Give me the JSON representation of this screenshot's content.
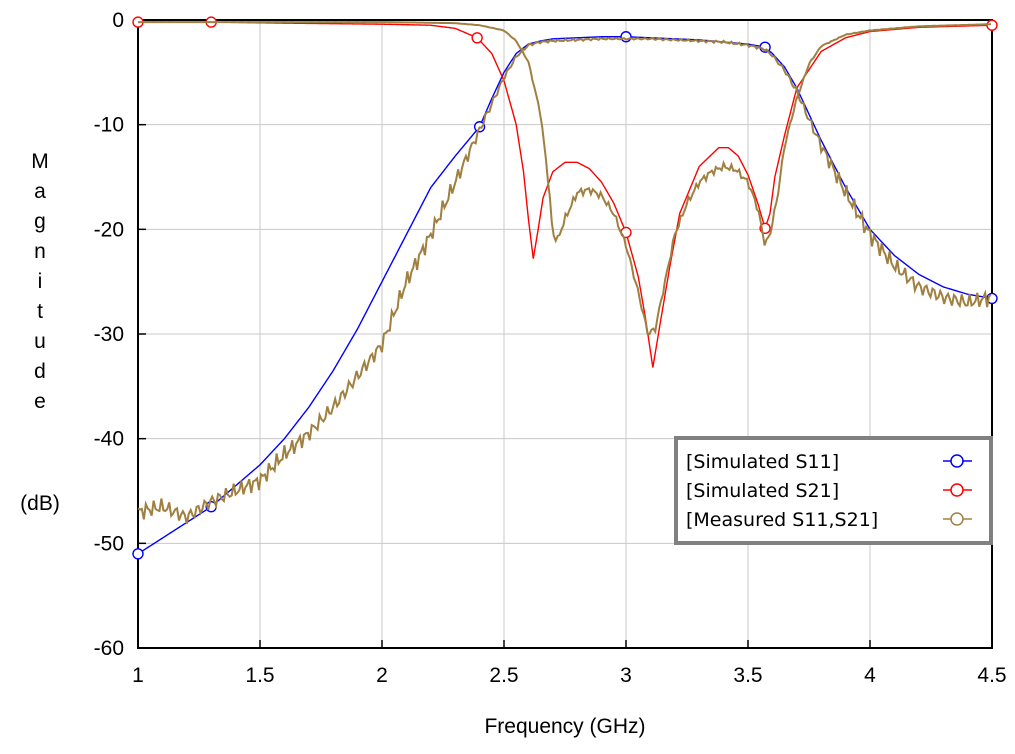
{
  "chart_data": {
    "type": "line",
    "title": "",
    "xlabel": "Frequency (GHz)",
    "ylabel": "Magnitude",
    "ylabel_unit": "(dB)",
    "xlim": [
      1,
      4.5
    ],
    "ylim": [
      -60,
      0
    ],
    "x_ticks": [
      "1",
      "1.5",
      "2",
      "2.5",
      "3",
      "3.5",
      "4",
      "4.5"
    ],
    "y_ticks": [
      "0",
      "-10",
      "-20",
      "-30",
      "-40",
      "-50",
      "-60"
    ],
    "grid": true,
    "legend_position": "lower-right",
    "series": [
      {
        "name": "[Simulated S11]",
        "color": "#0000ff",
        "marker": "circle",
        "markers_x": [
          1.0,
          1.3,
          2.4,
          3.0,
          3.57,
          4.5
        ],
        "x": [
          1.0,
          1.1,
          1.2,
          1.3,
          1.4,
          1.5,
          1.6,
          1.7,
          1.8,
          1.9,
          2.0,
          2.1,
          2.2,
          2.3,
          2.4,
          2.45,
          2.5,
          2.55,
          2.6,
          2.65,
          2.7,
          2.8,
          2.9,
          3.0,
          3.1,
          3.2,
          3.3,
          3.4,
          3.5,
          3.57,
          3.6,
          3.65,
          3.7,
          3.75,
          3.8,
          3.9,
          4.0,
          4.1,
          4.2,
          4.3,
          4.4,
          4.5
        ],
        "values": [
          -51.0,
          -49.5,
          -48.0,
          -46.5,
          -44.5,
          -42.5,
          -40.0,
          -37.0,
          -33.5,
          -29.5,
          -25.0,
          -20.5,
          -16.0,
          -13.0,
          -10.2,
          -7.5,
          -5.0,
          -3.2,
          -2.3,
          -2.0,
          -1.8,
          -1.7,
          -1.6,
          -1.6,
          -1.7,
          -1.8,
          -1.9,
          -2.1,
          -2.3,
          -2.6,
          -3.2,
          -4.5,
          -6.5,
          -9.0,
          -11.5,
          -16.0,
          -20.0,
          -22.5,
          -24.3,
          -25.5,
          -26.2,
          -26.6
        ]
      },
      {
        "name": "[Simulated S21]",
        "color": "#ff0000",
        "marker": "circle",
        "markers_x": [
          1.0,
          1.3,
          2.39,
          3.0,
          3.57,
          4.5
        ],
        "x": [
          1.0,
          1.3,
          1.6,
          2.0,
          2.2,
          2.3,
          2.39,
          2.45,
          2.5,
          2.55,
          2.58,
          2.6,
          2.62,
          2.64,
          2.66,
          2.7,
          2.75,
          2.8,
          2.85,
          2.9,
          2.95,
          3.0,
          3.05,
          3.08,
          3.11,
          3.14,
          3.18,
          3.22,
          3.3,
          3.38,
          3.42,
          3.46,
          3.5,
          3.54,
          3.57,
          3.59,
          3.61,
          3.65,
          3.7,
          3.8,
          3.9,
          4.0,
          4.2,
          4.5
        ],
        "values": [
          -0.2,
          -0.2,
          -0.3,
          -0.4,
          -0.5,
          -0.8,
          -1.7,
          -3.2,
          -5.8,
          -10.0,
          -14.5,
          -19.0,
          -22.8,
          -20.0,
          -17.0,
          -14.5,
          -13.6,
          -13.6,
          -14.2,
          -15.5,
          -17.5,
          -20.3,
          -24.5,
          -28.5,
          -33.2,
          -29.0,
          -23.5,
          -18.5,
          -14.0,
          -12.2,
          -12.2,
          -13.0,
          -14.8,
          -17.5,
          -19.9,
          -18.5,
          -15.0,
          -11.0,
          -6.5,
          -3.0,
          -1.7,
          -1.1,
          -0.7,
          -0.5
        ]
      },
      {
        "name": "[Measured S11,S21]",
        "color": "#a08040",
        "marker": "circle",
        "markers_x": [],
        "x": [
          1.0,
          1.1,
          1.2,
          1.3,
          1.4,
          1.5,
          1.6,
          1.7,
          1.8,
          1.9,
          2.0,
          2.1,
          2.2,
          2.3,
          2.4,
          2.45,
          2.5,
          2.55,
          2.6,
          2.65,
          2.7,
          2.8,
          2.9,
          3.0,
          3.1,
          3.2,
          3.3,
          3.4,
          3.5,
          3.57,
          3.6,
          3.65,
          3.7,
          3.75,
          3.8,
          3.9,
          4.0,
          4.1,
          4.2,
          4.3,
          4.4,
          4.5
        ],
        "values": [
          -47.0,
          -46.5,
          -47.5,
          -46.0,
          -45.0,
          -44.0,
          -41.5,
          -39.5,
          -37.0,
          -34.0,
          -31.0,
          -25.0,
          -20.5,
          -15.5,
          -10.5,
          -8.0,
          -5.5,
          -3.5,
          -2.4,
          -2.1,
          -2.0,
          -1.9,
          -1.8,
          -1.8,
          -1.8,
          -1.9,
          -2.0,
          -2.1,
          -2.4,
          -2.8,
          -3.4,
          -4.8,
          -6.8,
          -9.5,
          -12.0,
          -16.5,
          -20.5,
          -23.5,
          -25.5,
          -26.5,
          -27.0,
          -26.5
        ],
        "values2_x": [
          1.0,
          1.5,
          2.0,
          2.3,
          2.4,
          2.5,
          2.55,
          2.6,
          2.65,
          2.68,
          2.7,
          2.72,
          2.75,
          2.8,
          2.85,
          2.9,
          2.95,
          3.0,
          3.05,
          3.09,
          3.12,
          3.16,
          3.2,
          3.25,
          3.3,
          3.35,
          3.4,
          3.45,
          3.5,
          3.54,
          3.57,
          3.59,
          3.62,
          3.65,
          3.7,
          3.75,
          3.8,
          3.9,
          4.0,
          4.2,
          4.5
        ],
        "values2": [
          -0.2,
          -0.2,
          -0.2,
          -0.3,
          -0.5,
          -1.0,
          -2.0,
          -4.0,
          -9.0,
          -15.0,
          -20.5,
          -21.0,
          -19.0,
          -16.5,
          -16.2,
          -16.8,
          -18.5,
          -21.5,
          -26.0,
          -30.0,
          -29.5,
          -25.0,
          -20.5,
          -17.5,
          -15.5,
          -14.5,
          -14.0,
          -14.3,
          -15.5,
          -18.0,
          -21.5,
          -20.5,
          -17.0,
          -12.0,
          -7.5,
          -4.2,
          -2.5,
          -1.4,
          -1.0,
          -0.6,
          -0.4
        ]
      }
    ]
  }
}
